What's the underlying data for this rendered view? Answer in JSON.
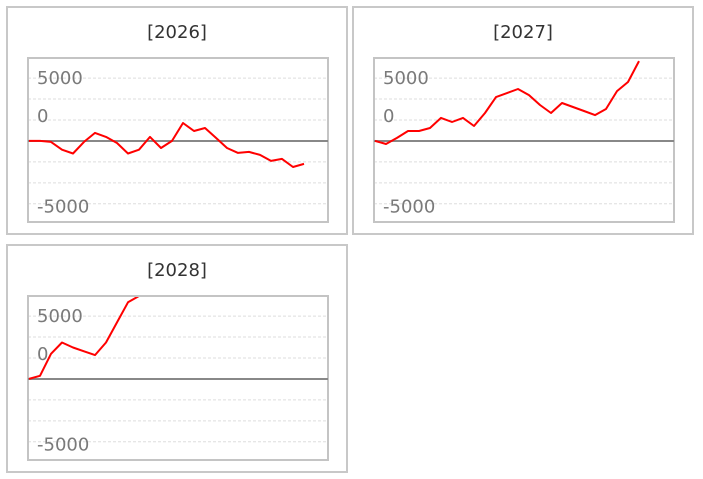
{
  "chart_data": [
    {
      "type": "line",
      "title": "[2026]",
      "ylim": [
        -6450,
        6600
      ],
      "yticks": [
        5000,
        0,
        -5000
      ],
      "grid": true,
      "line_color": "#ff0000",
      "x": [
        0,
        1,
        2,
        3,
        4,
        5,
        6,
        7,
        8,
        9,
        10,
        11,
        12,
        13,
        14,
        15,
        16,
        17,
        18,
        19,
        20,
        21,
        22,
        23,
        24,
        25
      ],
      "values": [
        0,
        0,
        -80,
        -700,
        -1000,
        -80,
        640,
        320,
        -160,
        -1000,
        -700,
        320,
        -560,
        0,
        1430,
        790,
        1030,
        240,
        -560,
        -950,
        -870,
        -1110,
        -1590,
        -1430,
        -2070,
        -1830
      ]
    },
    {
      "type": "line",
      "title": "[2027]",
      "ylim": [
        -6450,
        6600
      ],
      "yticks": [
        5000,
        0,
        -5000
      ],
      "grid": true,
      "line_color": "#ff0000",
      "x": [
        0,
        1,
        2,
        3,
        4,
        5,
        6,
        7,
        8,
        9,
        10,
        11,
        12,
        13,
        14,
        15,
        16,
        17,
        18,
        19,
        20,
        21,
        22,
        23,
        24
      ],
      "values": [
        0,
        -240,
        240,
        790,
        790,
        1030,
        1830,
        1510,
        1830,
        1190,
        2220,
        3490,
        3810,
        4130,
        3650,
        2860,
        2220,
        3020,
        2700,
        2380,
        2060,
        2540,
        3970,
        4690,
        6350
      ]
    },
    {
      "type": "line",
      "title": "[2028]",
      "ylim": [
        -6450,
        6600
      ],
      "yticks": [
        5000,
        0,
        -5000
      ],
      "grid": true,
      "line_color": "#ff0000",
      "x": [
        0,
        1,
        2,
        3,
        4,
        5,
        6,
        7,
        8,
        9,
        10,
        11,
        12,
        13,
        14,
        15,
        16,
        17,
        18,
        19,
        20,
        21,
        22,
        23,
        24
      ],
      "values": [
        0,
        250,
        2000,
        2900,
        2500,
        2200,
        1900,
        2900,
        4500,
        6100,
        6600,
        6600,
        6600,
        6600,
        6600,
        6600,
        6600,
        6600,
        6600,
        6600,
        6600,
        6600,
        6600,
        6600,
        6600
      ]
    }
  ]
}
